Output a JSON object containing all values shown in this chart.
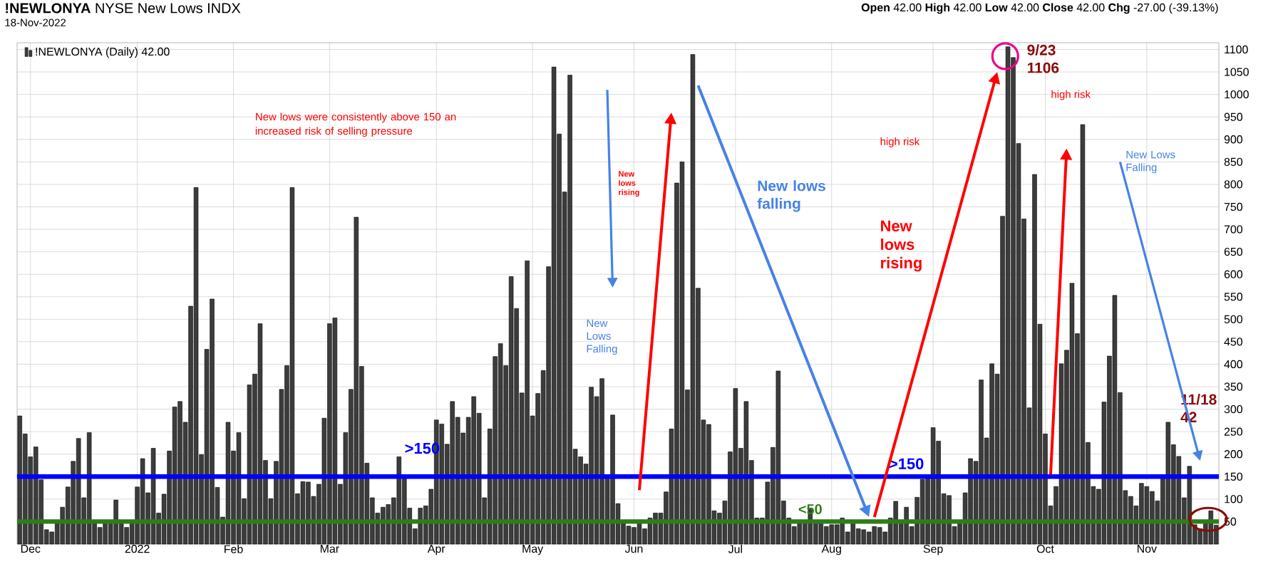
{
  "chart_data": {
    "type": "bar",
    "title": "**!NEWLONYA** NYSE New Lows INDX",
    "subtitle": "18-Nov-2022",
    "categories": [
      null,
      null,
      "Dec",
      null,
      null,
      null,
      null,
      null,
      null,
      null,
      null,
      null,
      null,
      null,
      null,
      null,
      null,
      null,
      null,
      null,
      null,
      null,
      "2022",
      null,
      null,
      null,
      null,
      null,
      null,
      null,
      null,
      null,
      null,
      null,
      null,
      null,
      null,
      null,
      null,
      null,
      "Feb",
      null,
      null,
      null,
      null,
      null,
      null,
      null,
      null,
      null,
      null,
      null,
      null,
      null,
      null,
      null,
      null,
      null,
      "Mar",
      null,
      null,
      null,
      null,
      null,
      null,
      null,
      null,
      null,
      null,
      null,
      null,
      null,
      null,
      null,
      null,
      null,
      null,
      null,
      "Apr",
      null,
      null,
      null,
      null,
      null,
      null,
      null,
      null,
      null,
      null,
      null,
      null,
      null,
      null,
      null,
      null,
      null,
      "May",
      null,
      null,
      null,
      null,
      null,
      null,
      null,
      null,
      null,
      null,
      null,
      null,
      null,
      null,
      null,
      null,
      null,
      null,
      "Jun",
      null,
      null,
      null,
      null,
      null,
      null,
      null,
      null,
      null,
      null,
      null,
      null,
      null,
      null,
      null,
      null,
      null,
      null,
      "Jul",
      null,
      null,
      null,
      null,
      null,
      null,
      null,
      null,
      null,
      null,
      null,
      null,
      null,
      null,
      null,
      null,
      null,
      "Aug",
      null,
      null,
      null,
      null,
      null,
      null,
      null,
      null,
      null,
      null,
      null,
      null,
      null,
      null,
      null,
      null,
      null,
      null,
      "Sep",
      null,
      null,
      null,
      null,
      null,
      null,
      null,
      null,
      null,
      null,
      null,
      null,
      null,
      null,
      null,
      null,
      null,
      null,
      null,
      null,
      "Oct",
      null,
      null,
      null,
      null,
      null,
      null,
      null,
      null,
      null,
      null,
      null,
      null,
      null,
      null,
      null,
      null,
      null,
      null,
      "Nov",
      null,
      null,
      null,
      null,
      null,
      null,
      null,
      null,
      null,
      null,
      null,
      null,
      null
    ],
    "series": [
      {
        "name": "!NEWLONYA (Daily) 42.00",
        "color": "#3c3c3c",
        "values": [
          285,
          245,
          194,
          216,
          143,
          32,
          27,
          48,
          82,
          127,
          184,
          235,
          103,
          248,
          53,
          37,
          50,
          52,
          98,
          52,
          37,
          50,
          127,
          190,
          114,
          213,
          69,
          111,
          207,
          305,
          317,
          271,
          529,
          793,
          199,
          433,
          545,
          126,
          60,
          271,
          207,
          248,
          101,
          354,
          378,
          490,
          186,
          101,
          184,
          344,
          397,
          793,
          112,
          139,
          138,
          106,
          133,
          280,
          490,
          503,
          133,
          248,
          344,
          727,
          395,
          180,
          103,
          69,
          82,
          88,
          103,
          194,
          146,
          80,
          34,
          80,
          85,
          122,
          276,
          267,
          222,
          317,
          282,
          247,
          282,
          328,
          291,
          103,
          256,
          417,
          446,
          397,
          595,
          524,
          336,
          630,
          285,
          335,
          386,
          617,
          1061,
          912,
          783,
          1043,
          211,
          194,
          178,
          349,
          328,
          368,
          149,
          287,
          90,
          46,
          40,
          37,
          53,
          34,
          58,
          69,
          69,
          116,
          256,
          803,
          850,
          343,
          1089,
          569,
          276,
          266,
          74,
          69,
          96,
          205,
          346,
          213,
          317,
          186,
          58,
          58,
          138,
          215,
          385,
          96,
          58,
          39,
          50,
          50,
          80,
          53,
          53,
          39,
          43,
          43,
          58,
          27,
          50,
          34,
          32,
          27,
          39,
          37,
          27,
          58,
          95,
          53,
          82,
          39,
          104,
          144,
          152,
          259,
          229,
          112,
          108,
          39,
          50,
          114,
          190,
          184,
          365,
          236,
          401,
          378,
          729,
          1106,
          1082,
          891,
          723,
          303,
          822,
          489,
          245,
          85,
          128,
          401,
          431,
          580,
          468,
          933,
          226,
          128,
          122,
          316,
          418,
          553,
          337,
          119,
          106,
          85,
          135,
          128,
          117,
          96,
          149,
          271,
          221,
          195,
          103,
          173,
          43,
          34,
          48,
          74,
          42
        ]
      }
    ],
    "ylim": [
      0,
      1115
    ],
    "yticks": [
      50,
      100,
      150,
      200,
      250,
      300,
      350,
      400,
      450,
      500,
      550,
      600,
      650,
      700,
      750,
      800,
      850,
      900,
      950,
      1000,
      1050,
      1100
    ],
    "grid": true,
    "legend": "top left",
    "ref_lines": [
      {
        "axis": "y",
        "value": 150,
        "label": ">150",
        "color": "#0000ff"
      },
      {
        "axis": "y",
        "value": 50,
        "label": "<50",
        "color": "#2e7d1a"
      }
    ],
    "annotations": [
      "**Open** 42.00 **High** 42.00 **Low** 42.00 **Close** 42.00 **Chg** -27.00 (-39.13%)",
      "New lows were consistently above 150 an increased risk of selling pressure",
      "New lows rising",
      "New Lows Falling",
      "New lows falling",
      "New lows rising",
      "high risk",
      "high risk",
      "New Lows Falling",
      ">150",
      "9/23 1106",
      "11/18 42"
    ]
  }
}
